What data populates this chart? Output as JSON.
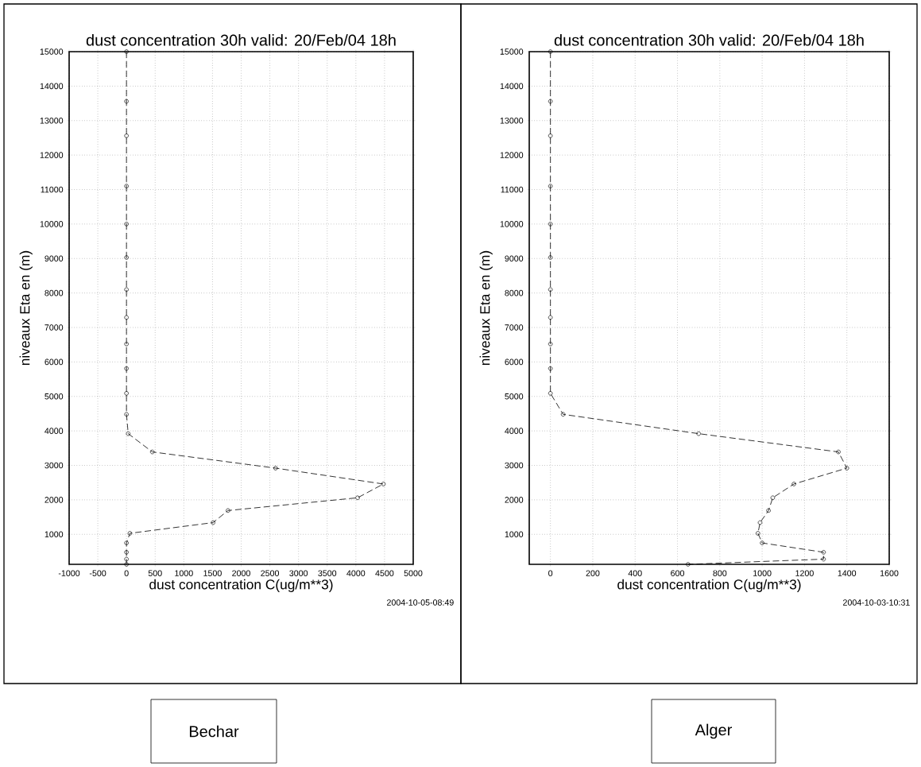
{
  "chart_data": [
    {
      "type": "line",
      "title": "dust concentration 30h valid: 20/Feb/04 18h",
      "xlabel": "dust concentration C(ug/m**3)",
      "ylabel": "niveaux Eta en (m)",
      "x": [
        0,
        0,
        0,
        0,
        0,
        0,
        0,
        0,
        0,
        0,
        0,
        0,
        30,
        450,
        2600,
        4480,
        4030,
        1770,
        1510,
        60,
        0,
        0,
        0,
        0
      ],
      "values": [
        15000,
        13560,
        12560,
        11100,
        10000,
        9030,
        8100,
        7290,
        6520,
        5810,
        5090,
        4480,
        3920,
        3390,
        2920,
        2460,
        2060,
        1690,
        1340,
        1030,
        750,
        480,
        280,
        130
      ],
      "color": "#000000",
      "marker": "circle",
      "line_style": "dashed",
      "grid": true,
      "xlim": [
        -1000,
        5000
      ],
      "xticks": [
        -1000,
        -500,
        0,
        500,
        1000,
        1500,
        2000,
        2500,
        3000,
        3500,
        4000,
        4500,
        5000
      ],
      "ylim": [
        130,
        15000
      ],
      "yticks": [
        1000,
        2000,
        3000,
        4000,
        5000,
        6000,
        7000,
        8000,
        9000,
        10000,
        11000,
        12000,
        13000,
        14000,
        15000
      ],
      "annotations": [
        "2004-10-05-08:49",
        "Bechar"
      ]
    },
    {
      "type": "line",
      "title": "dust concentration 30h valid: 20/Feb/04 18h",
      "xlabel": "dust concentration C(ug/m**3)",
      "ylabel": "niveaux Eta en (m)",
      "x": [
        0,
        0,
        0,
        0,
        0,
        0,
        0,
        0,
        0,
        0,
        0,
        60,
        700,
        1360,
        1400,
        1150,
        1050,
        1030,
        990,
        980,
        1000,
        1290,
        1290,
        650
      ],
      "values": [
        15000,
        13560,
        12560,
        11100,
        10000,
        9030,
        8100,
        7290,
        6520,
        5810,
        5090,
        4480,
        3920,
        3390,
        2920,
        2460,
        2060,
        1690,
        1340,
        1030,
        750,
        480,
        280,
        130
      ],
      "color": "#000000",
      "marker": "circle",
      "line_style": "dashed",
      "grid": true,
      "xlim": [
        -100,
        1600
      ],
      "xticks": [
        0,
        200,
        400,
        600,
        800,
        1000,
        1200,
        1400,
        1600
      ],
      "ylim": [
        130,
        15000
      ],
      "yticks": [
        1000,
        2000,
        3000,
        4000,
        5000,
        6000,
        7000,
        8000,
        9000,
        10000,
        11000,
        12000,
        13000,
        14000,
        15000
      ],
      "annotations": [
        "2004-10-03-10:31",
        "Alger"
      ]
    }
  ]
}
